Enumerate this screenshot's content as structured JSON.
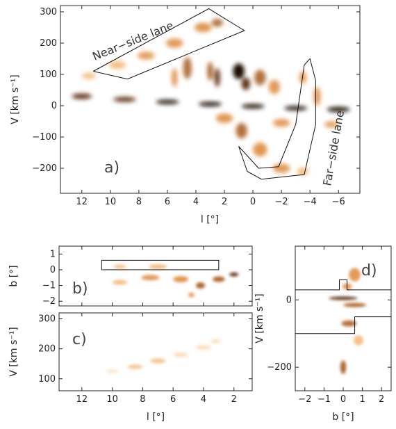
{
  "chart_data": [
    {
      "panel": "a)",
      "type": "heatmap",
      "xlabel": "l [°]",
      "ylabel": "V [km s⁻¹]",
      "xlim": [
        13.5,
        -7.5
      ],
      "ylim": [
        -280,
        320
      ],
      "xticks": [
        12,
        10,
        8,
        6,
        4,
        2,
        0,
        -2,
        -4,
        -6
      ],
      "yticks": [
        -200,
        -100,
        0,
        100,
        200,
        300
      ],
      "colormap": "white-orange-black",
      "annotations": [
        "Near−side lane",
        "Far−side lane"
      ],
      "near_side_lane_outline": [
        [
          11.2,
          110
        ],
        [
          3.1,
          310
        ],
        [
          0.6,
          240
        ],
        [
          8.8,
          85
        ],
        [
          11.2,
          110
        ]
      ],
      "far_side_lane_outline": [
        [
          1.0,
          -130
        ],
        [
          -0.4,
          -200
        ],
        [
          -1.8,
          -195
        ],
        [
          -3.0,
          -60
        ],
        [
          -3.6,
          130
        ],
        [
          -4.0,
          150
        ],
        [
          -4.4,
          80
        ],
        [
          -4.4,
          -60
        ],
        [
          -3.6,
          -220
        ],
        [
          -0.6,
          -235
        ],
        [
          0.4,
          -210
        ],
        [
          1.0,
          -130
        ]
      ],
      "emission": [
        {
          "l": 12.0,
          "v": 30,
          "w": 1.4,
          "h": 18,
          "i": 0.8
        },
        {
          "l": 9.0,
          "v": 20,
          "w": 1.6,
          "h": 16,
          "i": 0.8
        },
        {
          "l": 6.0,
          "v": 12,
          "w": 1.6,
          "h": 14,
          "i": 0.9
        },
        {
          "l": 3.0,
          "v": 5,
          "w": 1.6,
          "h": 14,
          "i": 1.0
        },
        {
          "l": 0.0,
          "v": -2,
          "w": 1.6,
          "h": 14,
          "i": 1.0
        },
        {
          "l": -3.0,
          "v": -8,
          "w": 1.6,
          "h": 14,
          "i": 0.9
        },
        {
          "l": -6.0,
          "v": -12,
          "w": 1.6,
          "h": 16,
          "i": 0.9
        },
        {
          "l": 11.5,
          "v": 95,
          "w": 1.0,
          "h": 20,
          "i": 0.35
        },
        {
          "l": 9.5,
          "v": 130,
          "w": 1.2,
          "h": 25,
          "i": 0.4
        },
        {
          "l": 7.5,
          "v": 160,
          "w": 1.2,
          "h": 25,
          "i": 0.45
        },
        {
          "l": 5.5,
          "v": 200,
          "w": 1.2,
          "h": 30,
          "i": 0.5
        },
        {
          "l": 3.5,
          "v": 250,
          "w": 1.2,
          "h": 30,
          "i": 0.55
        },
        {
          "l": 2.5,
          "v": 265,
          "w": 0.8,
          "h": 25,
          "i": 0.6
        },
        {
          "l": 5.5,
          "v": 90,
          "w": 0.4,
          "h": 60,
          "i": 0.55
        },
        {
          "l": 4.6,
          "v": 120,
          "w": 0.6,
          "h": 70,
          "i": 0.6
        },
        {
          "l": 3.0,
          "v": 110,
          "w": 0.4,
          "h": 60,
          "i": 0.7
        },
        {
          "l": 2.5,
          "v": 90,
          "w": 0.4,
          "h": 60,
          "i": 0.75
        },
        {
          "l": 1.0,
          "v": 110,
          "w": 0.8,
          "h": 50,
          "i": 0.95
        },
        {
          "l": 0.5,
          "v": 70,
          "w": 0.6,
          "h": 40,
          "i": 0.85
        },
        {
          "l": -0.5,
          "v": 90,
          "w": 0.8,
          "h": 50,
          "i": 0.6
        },
        {
          "l": -1.5,
          "v": 60,
          "w": 0.8,
          "h": 45,
          "i": 0.5
        },
        {
          "l": -3.5,
          "v": 90,
          "w": 0.5,
          "h": 40,
          "i": 0.45
        },
        {
          "l": -4.5,
          "v": 30,
          "w": 0.5,
          "h": 60,
          "i": 0.5
        },
        {
          "l": 0.8,
          "v": -80,
          "w": 0.8,
          "h": 50,
          "i": 0.6
        },
        {
          "l": -0.5,
          "v": -140,
          "w": 1.0,
          "h": 45,
          "i": 0.55
        },
        {
          "l": -2.0,
          "v": -200,
          "w": 1.2,
          "h": 30,
          "i": 0.5
        },
        {
          "l": -3.5,
          "v": -210,
          "w": 0.8,
          "h": 25,
          "i": 0.4
        },
        {
          "l": 2.0,
          "v": -40,
          "w": 1.2,
          "h": 30,
          "i": 0.55
        },
        {
          "l": -2.0,
          "v": -55,
          "w": 1.2,
          "h": 25,
          "i": 0.5
        },
        {
          "l": -5.5,
          "v": -60,
          "w": 1.0,
          "h": 20,
          "i": 0.45
        }
      ]
    },
    {
      "panel": "b)",
      "type": "heatmap",
      "xlabel": "",
      "ylabel": "b [°]",
      "xlim": [
        13.5,
        0.8
      ],
      "ylim": [
        -2.3,
        1.5
      ],
      "xticks": [
        12,
        10,
        8,
        6,
        4,
        2
      ],
      "yticks": [
        -2,
        -1,
        0,
        1
      ],
      "region_box": {
        "l": [
          10.7,
          3.0
        ],
        "b": [
          0.0,
          0.6
        ]
      },
      "emission": [
        {
          "l": 9.5,
          "b": 0.2,
          "w": 0.8,
          "h": 0.25,
          "i": 0.35
        },
        {
          "l": 7.0,
          "b": 0.2,
          "w": 1.2,
          "h": 0.3,
          "i": 0.4
        },
        {
          "l": 9.5,
          "b": -0.8,
          "w": 1.0,
          "h": 0.3,
          "i": 0.4
        },
        {
          "l": 7.5,
          "b": -0.5,
          "w": 1.2,
          "h": 0.35,
          "i": 0.5
        },
        {
          "l": 5.5,
          "b": -0.6,
          "w": 1.0,
          "h": 0.4,
          "i": 0.55
        },
        {
          "l": 4.2,
          "b": -1.0,
          "w": 0.6,
          "h": 0.4,
          "i": 0.7
        },
        {
          "l": 3.0,
          "b": -0.6,
          "w": 0.8,
          "h": 0.35,
          "i": 0.7
        },
        {
          "l": 2.0,
          "b": -0.3,
          "w": 0.6,
          "h": 0.25,
          "i": 0.8
        },
        {
          "l": 4.8,
          "b": -1.6,
          "w": 0.4,
          "h": 0.3,
          "i": 0.5
        }
      ]
    },
    {
      "panel": "c)",
      "type": "heatmap",
      "xlabel": "l [°]",
      "ylabel": "V [km s⁻¹]",
      "xlim": [
        13.5,
        0.8
      ],
      "ylim": [
        60,
        320
      ],
      "xticks": [
        12,
        10,
        8,
        6,
        4,
        2
      ],
      "yticks": [
        100,
        200,
        300
      ],
      "emission": [
        {
          "l": 10.0,
          "v": 125,
          "w": 0.8,
          "h": 10,
          "i": 0.25
        },
        {
          "l": 8.5,
          "v": 140,
          "w": 1.0,
          "h": 14,
          "i": 0.3
        },
        {
          "l": 7.0,
          "v": 160,
          "w": 1.0,
          "h": 16,
          "i": 0.3
        },
        {
          "l": 5.5,
          "v": 180,
          "w": 1.0,
          "h": 16,
          "i": 0.28
        },
        {
          "l": 4.0,
          "v": 205,
          "w": 1.0,
          "h": 16,
          "i": 0.25
        },
        {
          "l": 3.2,
          "v": 225,
          "w": 0.6,
          "h": 14,
          "i": 0.2
        }
      ]
    },
    {
      "panel": "d)",
      "type": "heatmap",
      "xlabel": "b [°]",
      "ylabel": "V [km s⁻¹]",
      "xlim": [
        -2.5,
        2.5
      ],
      "ylim": [
        -270,
        160
      ],
      "xticks": [
        -2,
        -1,
        0,
        1,
        2
      ],
      "yticks": [
        -200,
        0
      ],
      "region_outline_upper": [
        [
          -2.5,
          30
        ],
        [
          -0.2,
          30
        ],
        [
          -0.2,
          60
        ],
        [
          0.2,
          60
        ],
        [
          0.2,
          30
        ],
        [
          2.5,
          30
        ]
      ],
      "region_outline_lower": [
        [
          -2.5,
          -100
        ],
        [
          0.6,
          -100
        ],
        [
          0.6,
          -50
        ],
        [
          2.5,
          -50
        ]
      ],
      "emission": [
        {
          "b": 0.6,
          "v": 75,
          "w": 0.6,
          "h": 40,
          "i": 0.5
        },
        {
          "b": 0.2,
          "v": 40,
          "w": 0.5,
          "h": 20,
          "i": 0.45
        },
        {
          "b": 0.0,
          "v": 5,
          "w": 1.5,
          "h": 10,
          "i": 0.85
        },
        {
          "b": 0.6,
          "v": -15,
          "w": 1.2,
          "h": 12,
          "i": 0.7
        },
        {
          "b": 0.3,
          "v": -70,
          "w": 0.8,
          "h": 18,
          "i": 0.6
        },
        {
          "b": 0.0,
          "v": -200,
          "w": 0.3,
          "h": 40,
          "i": 0.7
        },
        {
          "b": 0.8,
          "v": -120,
          "w": 0.5,
          "h": 30,
          "i": 0.35
        }
      ]
    }
  ]
}
